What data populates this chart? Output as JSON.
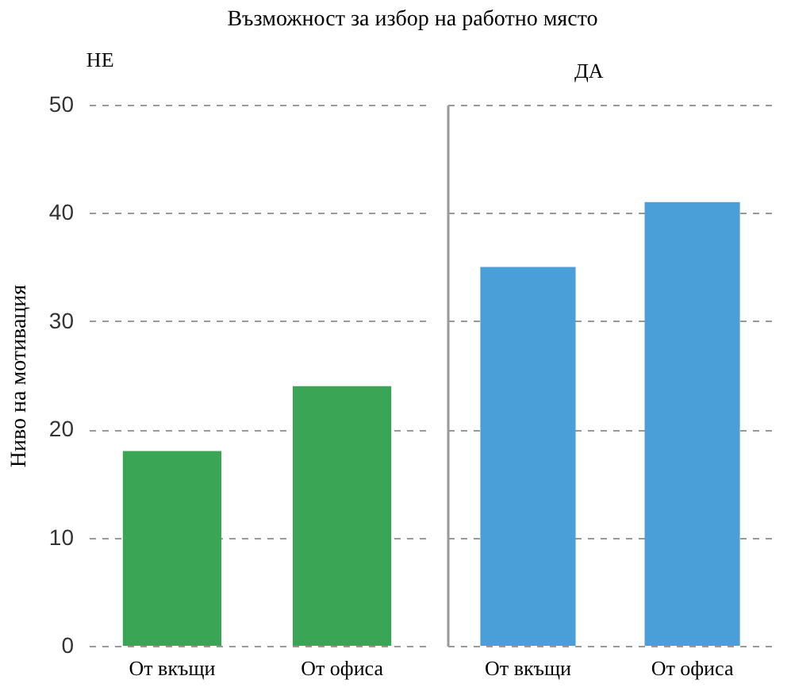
{
  "chart_data": [
    {
      "type": "bar",
      "title": "Възможност за избор на работно място",
      "subtitle": "НЕ",
      "ylabel": "Ниво на мотивация",
      "categories": [
        "От вкъщи",
        "От офиса"
      ],
      "values": [
        18,
        24
      ],
      "color": "#3aa655",
      "ylim": [
        0,
        50
      ],
      "yticks": [
        0,
        10,
        20,
        30,
        40,
        50
      ],
      "grid": "y"
    },
    {
      "type": "bar",
      "subtitle": "ДА",
      "categories": [
        "От вкъщи",
        "От офиса"
      ],
      "values": [
        35,
        41
      ],
      "color": "#4a9fd8",
      "ylim": [
        0,
        50
      ],
      "yticks": [
        0,
        10,
        20,
        30,
        40,
        50
      ],
      "grid": "y",
      "tick_labels": "x"
    }
  ]
}
